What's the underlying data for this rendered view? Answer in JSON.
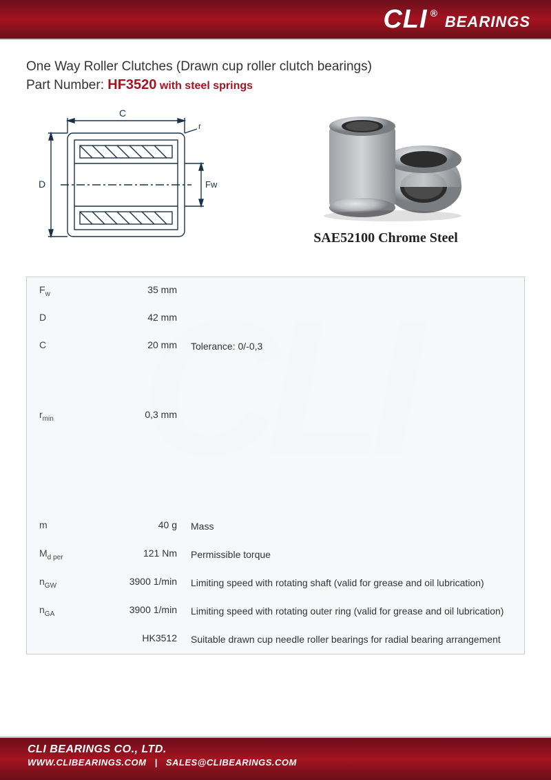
{
  "header": {
    "logo_cli": "CLI",
    "logo_r": "®",
    "logo_bearings": "BEARINGS"
  },
  "title": {
    "line1": "One Way Roller Clutches (Drawn cup roller clutch bearings)",
    "line2_prefix": "Part Number: ",
    "part_number": "HF3520",
    "springs": " with steel springs"
  },
  "diagram": {
    "label_C": "C",
    "label_D": "D",
    "label_Fw": "Fw",
    "label_r": "r",
    "stroke": "#19324a",
    "fill": "#ffffff"
  },
  "product": {
    "material": "SAE52100 Chrome Steel",
    "body_color": "#b9bcc0",
    "shadow_color": "#6e7074",
    "hole_color": "#2c2c2c"
  },
  "specs": {
    "rows": [
      {
        "symbol_html": "F<sub>w</sub>",
        "value": "35 mm",
        "desc": ""
      },
      {
        "symbol_html": "D",
        "value": "42 mm",
        "desc": ""
      },
      {
        "symbol_html": "C",
        "value": "20 mm",
        "desc": "Tolerance: 0/-0,3"
      },
      {
        "spacer": true
      },
      {
        "symbol_html": "r<sub>min</sub>",
        "value": "0,3 mm",
        "desc": ""
      },
      {
        "spacer": true
      },
      {
        "spacer": true
      },
      {
        "symbol_html": "m",
        "value": "40 g",
        "desc": "Mass"
      },
      {
        "symbol_html": "M<sub>d per</sub>",
        "value": "121 Nm",
        "desc": "Permissible torque"
      },
      {
        "symbol_html": "n<sub>GW</sub>",
        "value": "3900 1/min",
        "desc": "Limiting speed with rotating shaft (valid for grease and oil lubrication)"
      },
      {
        "symbol_html": "n<sub>GA</sub>",
        "value": "3900 1/min",
        "desc": "Limiting speed with rotating outer ring (valid for grease and oil lubrication)"
      },
      {
        "symbol_html": "",
        "value": "HK3512",
        "desc": "Suitable drawn cup needle roller bearings for radial bearing arrangement"
      }
    ],
    "border_color": "#cccccc",
    "bg_color": "#f5f7fa"
  },
  "footer": {
    "company": "CLI BEARINGS CO., LTD.",
    "website": "WWW.CLIBEARINGS.COM",
    "email": "SALES@CLIBEARINGS.COM"
  },
  "colors": {
    "brand_red_dark": "#6b0f1a",
    "brand_red": "#a31420",
    "text": "#333333"
  }
}
